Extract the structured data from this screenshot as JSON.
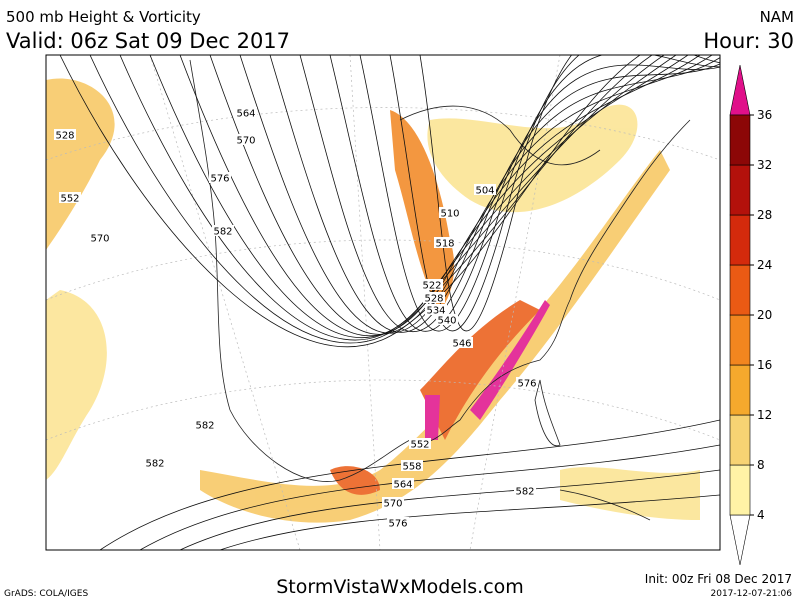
{
  "header": {
    "title": "500 mb Height & Vorticity",
    "valid": "Valid: 06z Sat 09 Dec 2017",
    "model": "NAM",
    "hour": "Hour: 30"
  },
  "colorbar": {
    "ticks": [
      4,
      8,
      12,
      16,
      20,
      24,
      28,
      32,
      36
    ],
    "colors": [
      "#fff3a6",
      "#f7d373",
      "#f5a92d",
      "#f2861f",
      "#ea5a14",
      "#d42a0c",
      "#b3110b",
      "#8c0707"
    ]
  },
  "contour_labels": [
    564,
    570,
    576,
    582,
    528,
    552,
    570,
    504,
    510,
    518,
    522,
    528,
    534,
    540,
    546,
    576,
    582,
    582,
    552,
    558,
    564,
    570,
    576,
    582
  ],
  "footer": {
    "software": "GrADS: COLA/IGES",
    "site": "StormVistaWxModels.com",
    "init": "Init: 00z Fri 08 Dec 2017",
    "stamp": "2017-12-07-21:06"
  }
}
